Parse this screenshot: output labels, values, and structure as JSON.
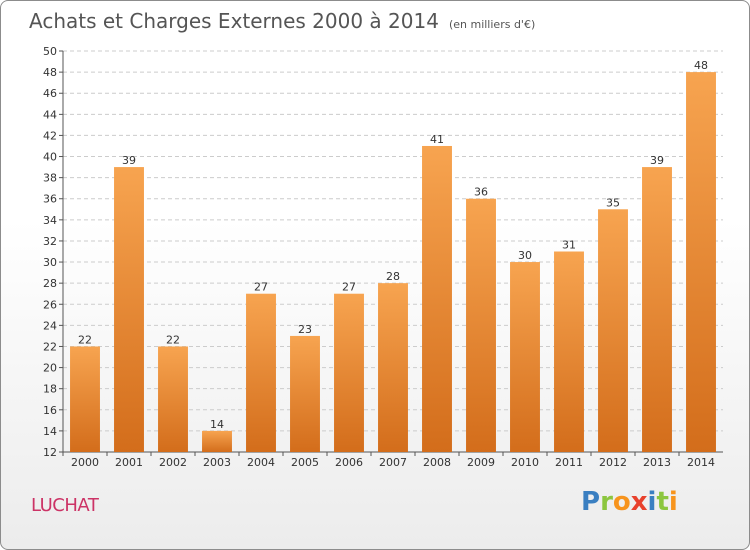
{
  "header": {
    "title": "Achats et Charges Externes 2000 à 2014",
    "subtitle": "(en milliers d'€)"
  },
  "footer": {
    "location": "LUCHAT",
    "brand_letters": [
      "P",
      "r",
      "o",
      "x",
      "i",
      "t",
      "i"
    ],
    "brand_colors": [
      "#3a7fc1",
      "#8cc63f",
      "#f7941d",
      "#e8412c",
      "#3a7fc1",
      "#8cc63f",
      "#f7941d"
    ]
  },
  "colors": {
    "bar_light": "#f7a450",
    "bar_dark": "#d36d1b",
    "grid": "#cccccc"
  },
  "chart_data": {
    "type": "bar",
    "title": "Achats et Charges Externes 2000 à 2014",
    "subtitle": "(en milliers d'€)",
    "categories": [
      "2000",
      "2001",
      "2002",
      "2003",
      "2004",
      "2005",
      "2006",
      "2007",
      "2008",
      "2009",
      "2010",
      "2011",
      "2012",
      "2013",
      "2014"
    ],
    "values": [
      22,
      39,
      22,
      14,
      27,
      23,
      27,
      28,
      41,
      36,
      30,
      31,
      35,
      39,
      48
    ],
    "ylim": [
      12,
      50
    ],
    "yticks": [
      12,
      14,
      16,
      18,
      20,
      22,
      24,
      26,
      28,
      30,
      32,
      34,
      36,
      38,
      40,
      42,
      44,
      46,
      48,
      50
    ],
    "grid": true,
    "xlabel": "",
    "ylabel": ""
  }
}
